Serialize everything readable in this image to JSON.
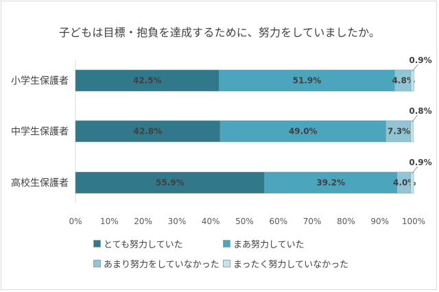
{
  "chart_data": {
    "type": "bar",
    "orientation": "horizontal",
    "stacked": true,
    "title": "子どもは目標・抱負を達成するために、努力をしていましたか。",
    "categories": [
      "小学生保護者",
      "中学生保護者",
      "高校生保護者"
    ],
    "series": [
      {
        "name": "とても努力していた",
        "values": [
          42.5,
          42.8,
          55.9
        ],
        "labels": [
          "42.5%",
          "42.8%",
          "55.9%"
        ],
        "color": "#31788a"
      },
      {
        "name": "まあ努力していた",
        "values": [
          51.9,
          49.0,
          39.2
        ],
        "labels": [
          "51.9%",
          "49.0%",
          "39.2%"
        ],
        "color": "#4ba5bc"
      },
      {
        "name": "あまり努力をしていなかった",
        "values": [
          4.8,
          7.3,
          4.0
        ],
        "labels": [
          "4.8%",
          "7.3%",
          "4.0%"
        ],
        "color": "#92c5d3"
      },
      {
        "name": "まったく努力していなかった",
        "values": [
          0.9,
          0.8,
          0.9
        ],
        "labels": [
          "0.9%",
          "0.8%",
          "0.9%"
        ],
        "color": "#c5e3eb"
      }
    ],
    "x_ticks": [
      "0%",
      "10%",
      "20%",
      "30%",
      "40%",
      "50%",
      "60%",
      "70%",
      "80%",
      "90%",
      "100%"
    ],
    "xlim": [
      0,
      100
    ],
    "grid": false,
    "legend_position": "bottom"
  }
}
